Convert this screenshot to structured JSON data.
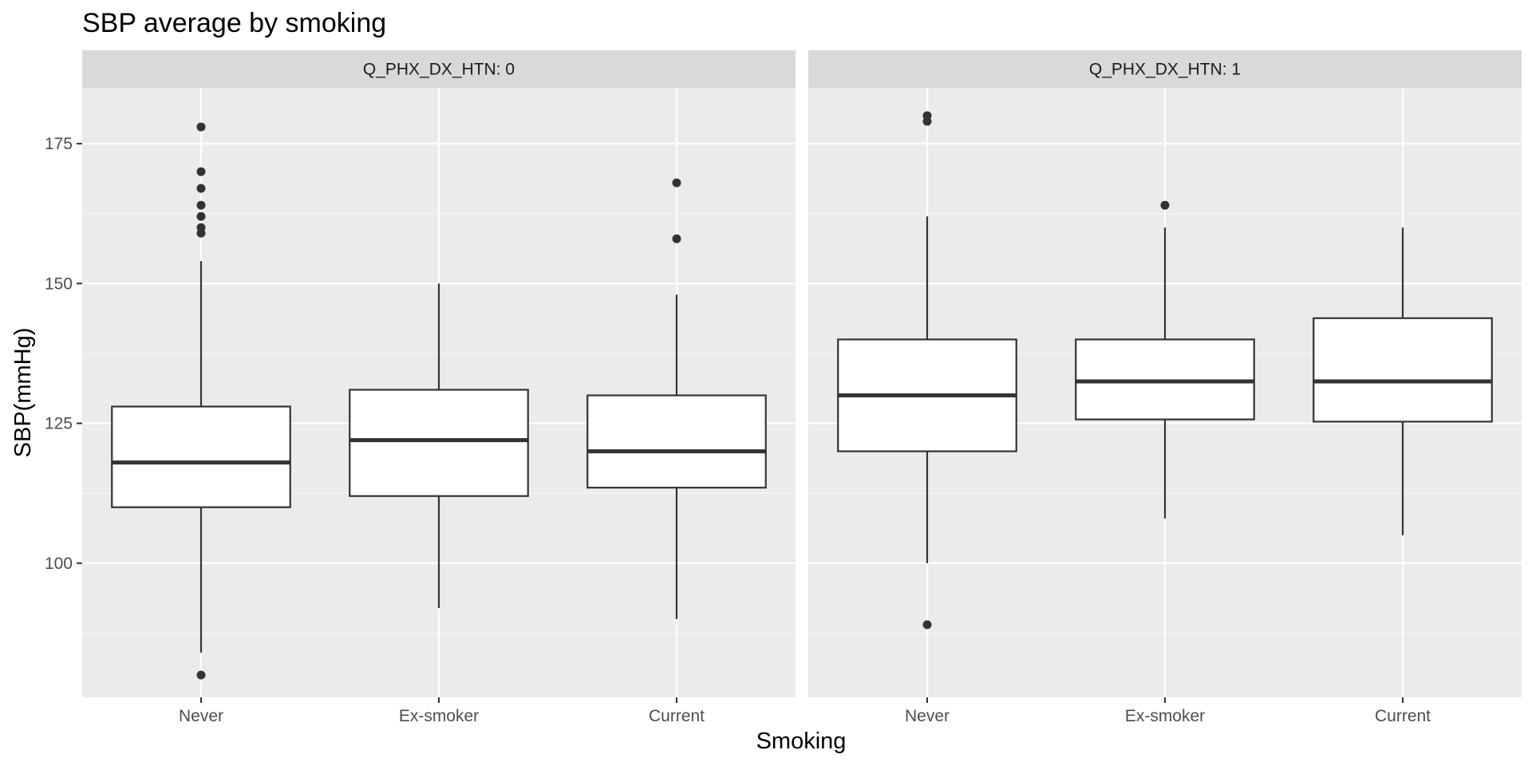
{
  "chart_data": {
    "type": "boxplot",
    "title": "SBP average by smoking",
    "xlabel": "Smoking",
    "ylabel": "SBP(mmHg)",
    "ylim": [
      76,
      185
    ],
    "yticks": [
      100,
      125,
      150,
      175
    ],
    "categories": [
      "Never",
      "Ex-smoker",
      "Current"
    ],
    "grid": true,
    "colors": {
      "panel_bg": "#ebebeb",
      "strip_bg": "#d9d9d9",
      "grid_major": "#ffffff",
      "box_fill": "#ffffff",
      "box_line": "#333333"
    },
    "panels": [
      {
        "label": "Q_PHX_DX_HTN: 0",
        "boxes": [
          {
            "category": "Never",
            "lower_whisker": 84,
            "q1": 110,
            "median": 118,
            "q3": 128,
            "upper_whisker": 154,
            "outliers": [
              80,
              159,
              160,
              162,
              164,
              167,
              170,
              178
            ]
          },
          {
            "category": "Ex-smoker",
            "lower_whisker": 92,
            "q1": 112,
            "median": 122,
            "q3": 131,
            "upper_whisker": 150,
            "outliers": []
          },
          {
            "category": "Current",
            "lower_whisker": 90,
            "q1": 113.5,
            "median": 120,
            "q3": 130,
            "upper_whisker": 148,
            "outliers": [
              158,
              168
            ]
          }
        ]
      },
      {
        "label": "Q_PHX_DX_HTN: 1",
        "boxes": [
          {
            "category": "Never",
            "lower_whisker": 100,
            "q1": 120,
            "median": 130,
            "q3": 140,
            "upper_whisker": 162,
            "outliers": [
              89,
              179,
              180
            ]
          },
          {
            "category": "Ex-smoker",
            "lower_whisker": 108,
            "q1": 125.7,
            "median": 132.5,
            "q3": 140,
            "upper_whisker": 160,
            "outliers": [
              164
            ]
          },
          {
            "category": "Current",
            "lower_whisker": 105,
            "q1": 125.3,
            "median": 132.5,
            "q3": 143.8,
            "upper_whisker": 160,
            "outliers": []
          }
        ]
      }
    ]
  }
}
